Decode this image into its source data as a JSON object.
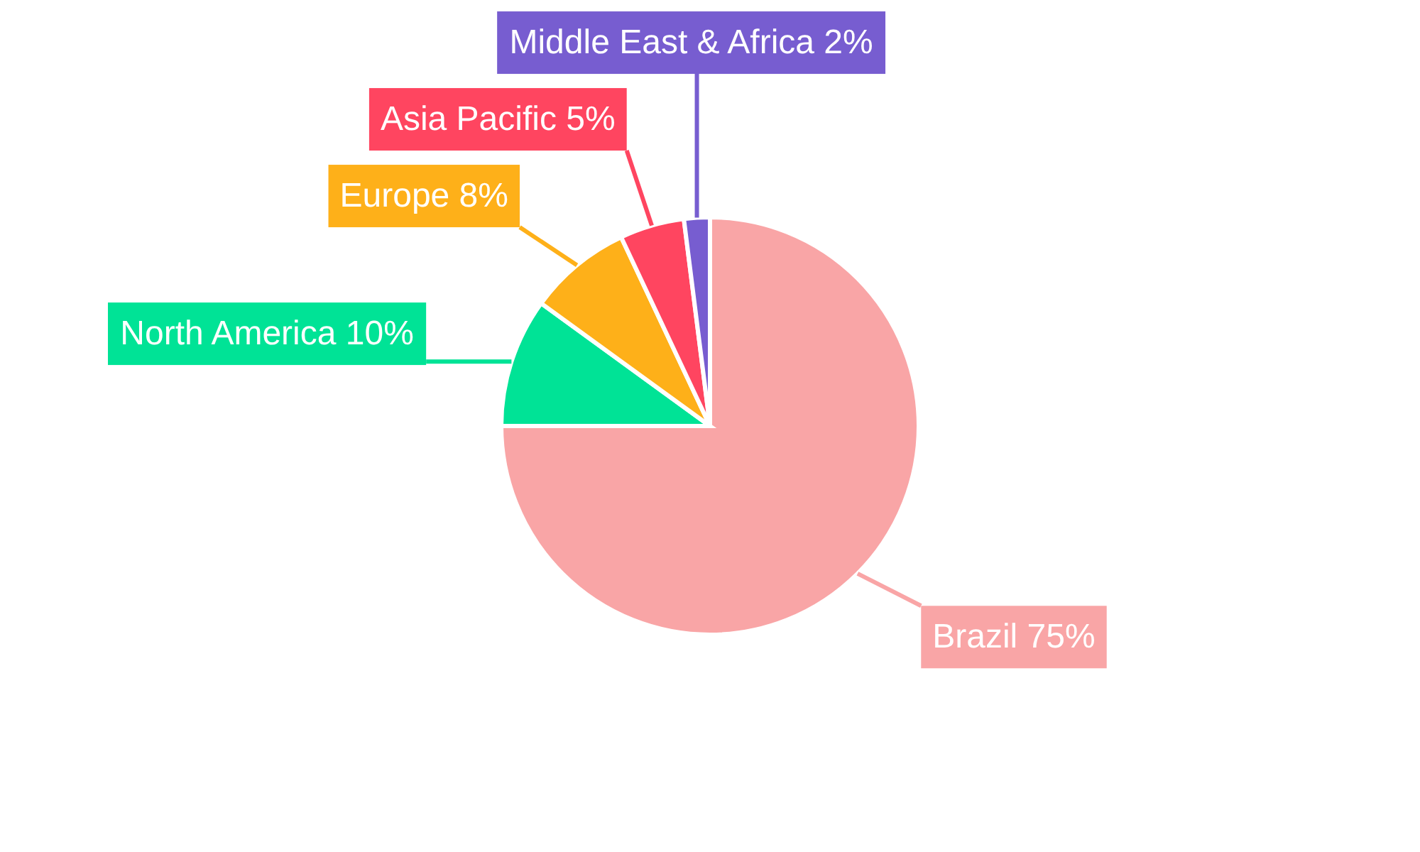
{
  "chart_data": {
    "type": "pie",
    "categories": [
      "Brazil",
      "North America",
      "Europe",
      "Asia Pacific",
      "Middle East & Africa"
    ],
    "values": [
      75,
      10,
      8,
      5,
      2
    ],
    "colors": [
      "#f9a5a6",
      "#00e396",
      "#feb019",
      "#ff4560",
      "#775dd0"
    ],
    "value_labels": [
      "75%",
      "10%",
      "8%",
      "5%",
      "2%"
    ]
  }
}
